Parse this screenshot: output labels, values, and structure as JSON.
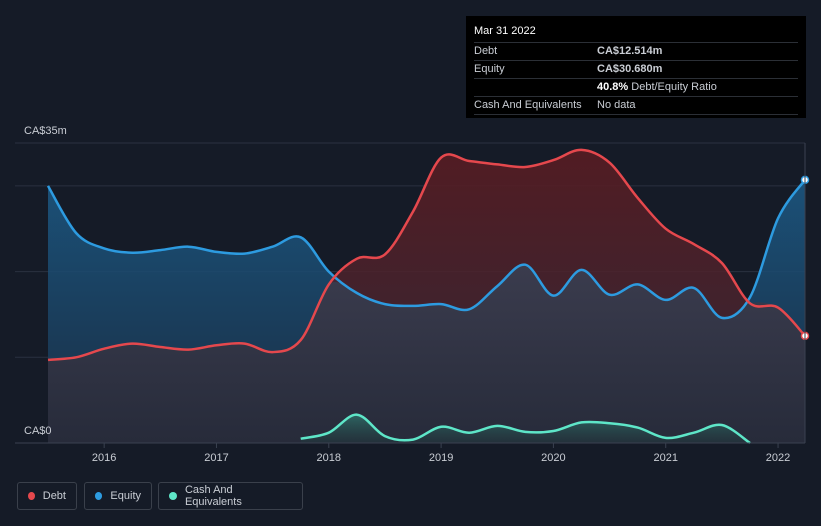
{
  "tooltip": {
    "date": "Mar 31 2022",
    "debt_label": "Debt",
    "debt_value": "CA$12.514m",
    "equity_label": "Equity",
    "equity_value": "CA$30.680m",
    "ratio_value": "40.8%",
    "ratio_label": "Debt/Equity Ratio",
    "cash_label": "Cash And Equivalents",
    "cash_value": "No data"
  },
  "legend": {
    "debt": "Debt",
    "equity": "Equity",
    "cash": "Cash And Equivalents"
  },
  "colors": {
    "debt": "#e5484d",
    "equity": "#2d9be0",
    "cash": "#5ee6c8",
    "background": "#151b27"
  },
  "chart_data": {
    "type": "area",
    "ylim": [
      0,
      35
    ],
    "y_tick_labels": [
      "CA$35m",
      "CA$0"
    ],
    "x_tick_labels": [
      "2016",
      "2017",
      "2018",
      "2019",
      "2020",
      "2021",
      "2022"
    ],
    "x_ticks": [
      2016,
      2017,
      2018,
      2019,
      2020,
      2021,
      2022
    ],
    "xlim": [
      2015.5,
      2022.24
    ],
    "series": [
      {
        "name": "Equity",
        "points": [
          [
            2015.5,
            30.0
          ],
          [
            2015.75,
            24.5
          ],
          [
            2016.0,
            22.7
          ],
          [
            2016.25,
            22.2
          ],
          [
            2016.5,
            22.5
          ],
          [
            2016.75,
            22.9
          ],
          [
            2017.0,
            22.3
          ],
          [
            2017.25,
            22.1
          ],
          [
            2017.5,
            22.9
          ],
          [
            2017.75,
            24.0
          ],
          [
            2018.0,
            20.0
          ],
          [
            2018.25,
            17.5
          ],
          [
            2018.5,
            16.2
          ],
          [
            2018.75,
            16.0
          ],
          [
            2019.0,
            16.2
          ],
          [
            2019.25,
            15.6
          ],
          [
            2019.5,
            18.3
          ],
          [
            2019.75,
            20.8
          ],
          [
            2020.0,
            17.2
          ],
          [
            2020.25,
            20.2
          ],
          [
            2020.5,
            17.3
          ],
          [
            2020.75,
            18.5
          ],
          [
            2021.0,
            16.7
          ],
          [
            2021.25,
            18.1
          ],
          [
            2021.5,
            14.6
          ],
          [
            2021.75,
            17.0
          ],
          [
            2022.0,
            26.2
          ],
          [
            2022.24,
            30.7
          ]
        ]
      },
      {
        "name": "Debt",
        "points": [
          [
            2015.5,
            9.7
          ],
          [
            2015.75,
            10.0
          ],
          [
            2016.0,
            11.0
          ],
          [
            2016.25,
            11.6
          ],
          [
            2016.5,
            11.2
          ],
          [
            2016.75,
            10.9
          ],
          [
            2017.0,
            11.4
          ],
          [
            2017.25,
            11.6
          ],
          [
            2017.5,
            10.6
          ],
          [
            2017.75,
            12.0
          ],
          [
            2018.0,
            18.5
          ],
          [
            2018.25,
            21.5
          ],
          [
            2018.5,
            22.0
          ],
          [
            2018.75,
            27.0
          ],
          [
            2019.0,
            33.3
          ],
          [
            2019.25,
            32.9
          ],
          [
            2019.5,
            32.5
          ],
          [
            2019.75,
            32.2
          ],
          [
            2020.0,
            33.0
          ],
          [
            2020.25,
            34.2
          ],
          [
            2020.5,
            32.7
          ],
          [
            2020.75,
            28.6
          ],
          [
            2021.0,
            25.0
          ],
          [
            2021.25,
            23.2
          ],
          [
            2021.5,
            21.0
          ],
          [
            2021.75,
            16.3
          ],
          [
            2022.0,
            15.8
          ],
          [
            2022.24,
            12.5
          ]
        ]
      },
      {
        "name": "Cash And Equivalents",
        "points": [
          [
            2017.75,
            0.5
          ],
          [
            2018.0,
            1.2
          ],
          [
            2018.25,
            3.3
          ],
          [
            2018.5,
            0.8
          ],
          [
            2018.75,
            0.4
          ],
          [
            2019.0,
            1.9
          ],
          [
            2019.25,
            1.2
          ],
          [
            2019.5,
            2.0
          ],
          [
            2019.75,
            1.3
          ],
          [
            2020.0,
            1.4
          ],
          [
            2020.25,
            2.4
          ],
          [
            2020.5,
            2.3
          ],
          [
            2020.75,
            1.8
          ],
          [
            2021.0,
            0.6
          ],
          [
            2021.25,
            1.2
          ],
          [
            2021.5,
            2.1
          ],
          [
            2021.75,
            0.0
          ]
        ]
      }
    ]
  }
}
